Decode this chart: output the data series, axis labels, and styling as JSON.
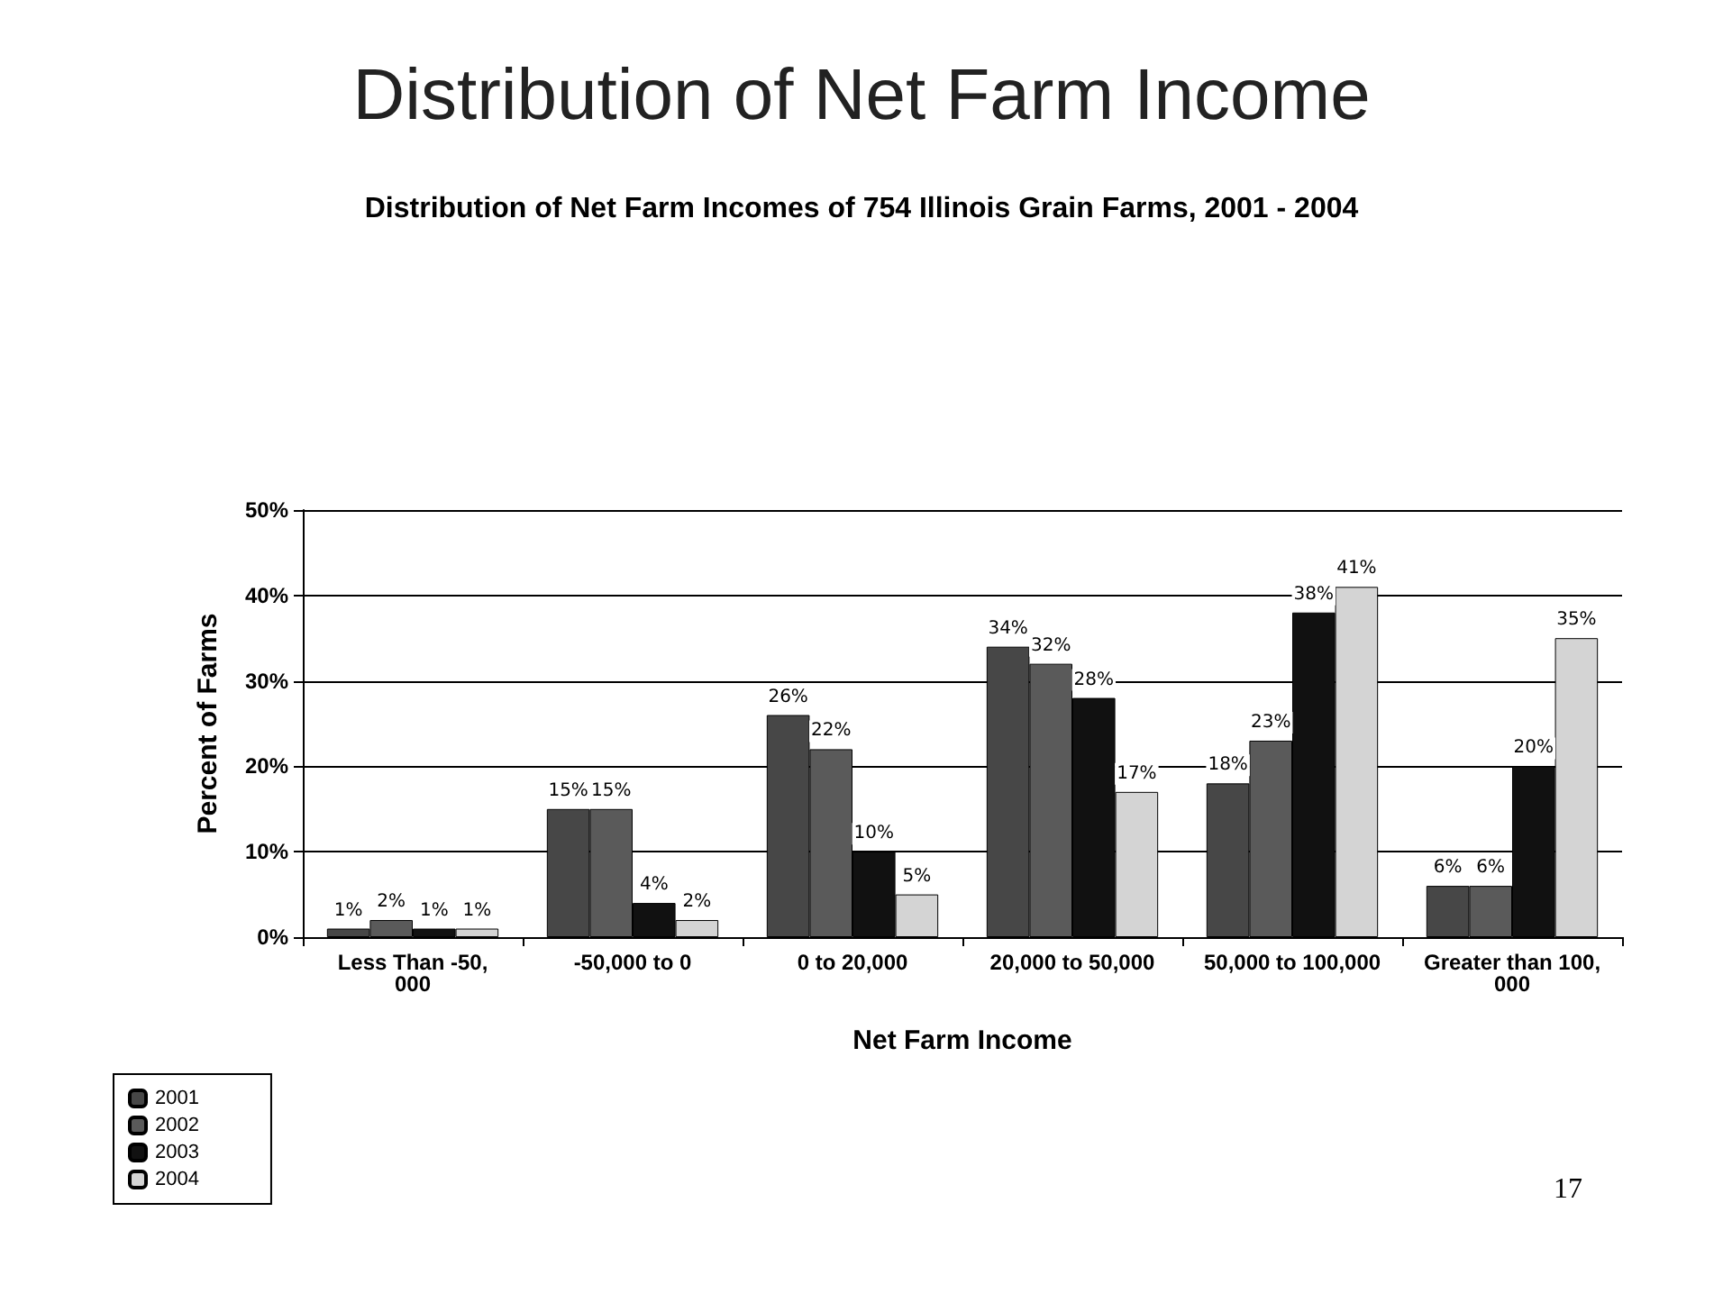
{
  "chart_data": {
    "type": "bar",
    "title": "Distribution of Net Farm Income",
    "subtitle": "Distribution of Net Farm Incomes of 754 Illinois Grain Farms, 2001 - 2004",
    "xlabel": "Net Farm Income",
    "ylabel": "Percent of Farms",
    "categories": [
      "Less Than -50,000",
      "-50,000 to 0",
      "0 to 20,000",
      "20,000 to 50,000",
      "50,000 to 100,000",
      "Greater than 100,000"
    ],
    "series": [
      {
        "name": "2001",
        "color": "#474747",
        "values": [
          1,
          15,
          26,
          34,
          18,
          6
        ],
        "value_labels": [
          "1%",
          "15%",
          "26%",
          "34%",
          "18%",
          "6%"
        ]
      },
      {
        "name": "2002",
        "color": "#5a5a5a",
        "values": [
          2,
          15,
          22,
          32,
          23,
          6
        ],
        "value_labels": [
          "2%",
          "15%",
          "22%",
          "32%",
          "23%",
          "6%"
        ]
      },
      {
        "name": "2003",
        "color": "#111111",
        "values": [
          1,
          4,
          10,
          28,
          38,
          20
        ],
        "value_labels": [
          "1%",
          "4%",
          "10%",
          "28%",
          "38%",
          "20%"
        ]
      },
      {
        "name": "2004",
        "color": "#d4d4d4",
        "values": [
          1,
          2,
          5,
          17,
          41,
          35
        ],
        "value_labels": [
          "1%",
          "2%",
          "5%",
          "17%",
          "41%",
          "35%"
        ]
      }
    ],
    "ylim": [
      0,
      50
    ],
    "yticks": [
      {
        "value": 0,
        "label": "0%"
      },
      {
        "value": 10,
        "label": "10%"
      },
      {
        "value": 20,
        "label": "20%"
      },
      {
        "value": 30,
        "label": "30%"
      },
      {
        "value": 40,
        "label": "40%"
      },
      {
        "value": 50,
        "label": "50%"
      }
    ],
    "grid": "y",
    "legend": "bottom left",
    "annotations": [
      "17"
    ]
  }
}
